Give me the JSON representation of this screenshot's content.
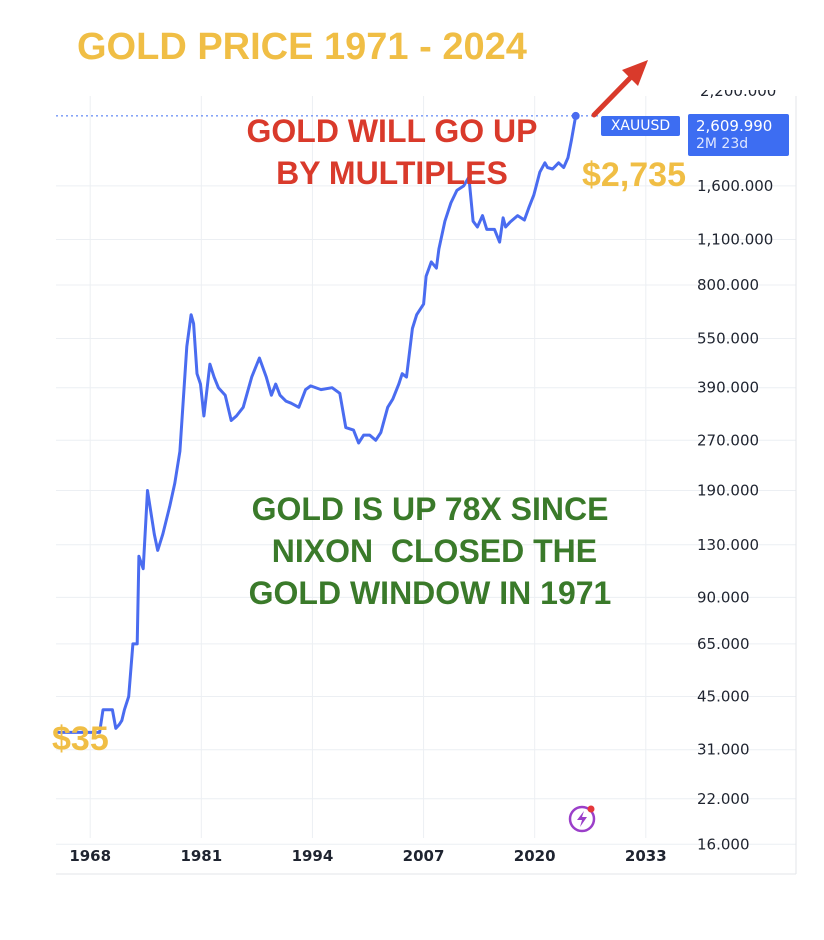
{
  "title": "GOLD PRICE 1971 - 2024",
  "annotations": {
    "up_multiples": "GOLD WILL GO UP\nBY MULTIPLES",
    "up_78x": "GOLD IS UP 78X SINCE\n NIXON  CLOSED THE\nGOLD WINDOW IN 1971",
    "price_high": "$2,735",
    "price_low": "$35"
  },
  "symbol_badge": "XAUUSD",
  "last_price": "2,609.990",
  "time_remaining": "2M 23d",
  "colors": {
    "title": "#f0be45",
    "red_text": "#d93a2b",
    "green_text": "#3a7a2a",
    "price_labels": "#f0be45",
    "line": "#4a6cf0",
    "arrow": "#d93a2b",
    "grid": "#eceff3"
  },
  "icons": [
    "arrow-up-right-icon",
    "lightning-bolt-icon"
  ],
  "chart_data": {
    "type": "line",
    "scale": "log",
    "grid": true,
    "title": "GOLD PRICE 1971 - 2024",
    "y_ticks": [
      "16.000",
      "22.000",
      "31.000",
      "45.000",
      "65.000",
      "90.000",
      "130.000",
      "190.000",
      "270.000",
      "390.000",
      "550.000",
      "800.000",
      "1,100.000",
      "1,600.000"
    ],
    "y_tick_values": [
      16,
      22,
      31,
      45,
      65,
      90,
      130,
      190,
      270,
      390,
      550,
      800,
      1100,
      1600
    ],
    "x_ticks": [
      "1968",
      "1981",
      "1994",
      "2007",
      "2020",
      "2033"
    ],
    "x_tick_values": [
      1968,
      1981,
      1994,
      2007,
      2020,
      2033
    ],
    "xlim": [
      1964,
      2037
    ],
    "ylim": [
      13,
      3000
    ],
    "series": [
      {
        "x": [
          1964.3,
          1967.0,
          1968.0,
          1968.3,
          1969.1,
          1969.5,
          1970.0,
          1970.6,
          1971.0,
          1971.4,
          1971.7,
          1972.0,
          1972.5,
          1973.0,
          1973.5,
          1973.7,
          1974.2,
          1974.7,
          1975.5,
          1975.9,
          1976.5,
          1977.3,
          1977.9,
          1978.5,
          1979.3,
          1979.8,
          1980.1,
          1980.5,
          1980.9,
          1981.3,
          1982.0,
          1982.5,
          1983.0,
          1983.8,
          1984.5,
          1985.1,
          1985.9,
          1986.9,
          1987.8,
          1988.6,
          1989.2,
          1989.7,
          1990.2,
          1990.9,
          1991.5,
          1992.4,
          1993.2,
          1993.8,
          1995.0,
          1996.3,
          1997.2,
          1997.9,
          1998.8,
          1999.4,
          2000.0,
          2000.7,
          2001.4,
          2002.0,
          2002.8,
          2003.4,
          2004.1,
          2004.5,
          2005.0,
          2005.7,
          2006.2,
          2007.0,
          2007.3,
          2007.9,
          2008.5,
          2008.8,
          2009.5,
          2010.2,
          2010.9,
          2011.7,
          2012.3,
          2012.8,
          2013.3,
          2013.9,
          2014.4,
          2015.3,
          2015.9,
          2016.3,
          2016.6,
          2017.1,
          2018.0,
          2018.8,
          2019.3,
          2019.9,
          2020.6,
          2021.2,
          2021.5,
          2022.1,
          2022.8,
          2023.4,
          2023.9,
          2024.3,
          2024.8
        ],
        "y": [
          35,
          35,
          35,
          35,
          35,
          41,
          41,
          41,
          36,
          37,
          38,
          41,
          45,
          65,
          65,
          120,
          110,
          190,
          140,
          125,
          140,
          170,
          200,
          250,
          520,
          650,
          610,
          430,
          400,
          320,
          460,
          420,
          390,
          370,
          310,
          320,
          340,
          420,
          480,
          420,
          370,
          400,
          370,
          355,
          350,
          340,
          385,
          395,
          385,
          390,
          375,
          295,
          290,
          265,
          280,
          280,
          270,
          285,
          340,
          360,
          400,
          430,
          420,
          590,
          650,
          700,
          850,
          940,
          900,
          1030,
          1250,
          1420,
          1550,
          1600,
          1700,
          1250,
          1200,
          1300,
          1180,
          1180,
          1080,
          1280,
          1200,
          1240,
          1300,
          1260,
          1370,
          1500,
          1760,
          1880,
          1820,
          1800,
          1880,
          1820,
          1950,
          2200,
          2609.99
        ]
      }
    ]
  }
}
